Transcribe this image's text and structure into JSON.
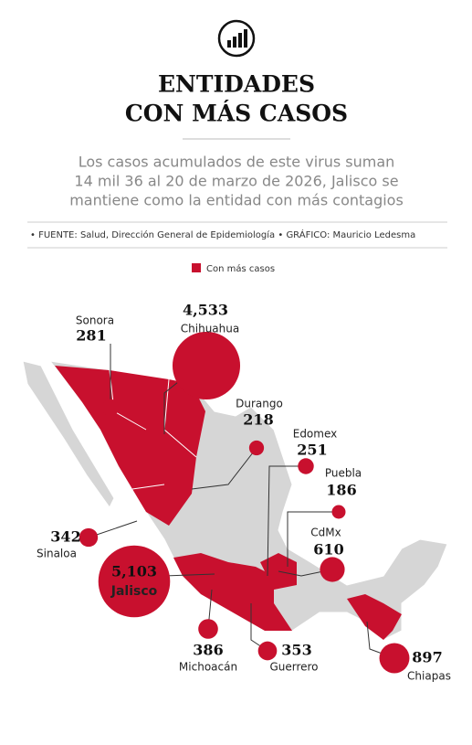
{
  "header": {
    "title_lines": [
      "ENTIDADES",
      "CON MÁS CASOS"
    ],
    "subtitle_lines": [
      "Los casos acumulados de este virus suman",
      "14 mil 36 al 20 de marzo de 2026, Jalisco se",
      "mantiene como la entidad con más contagios"
    ],
    "source_label": "FUENTE:",
    "source": "Salud, Dirección General de Epidemiología",
    "credit_label": "GRÁFICO:",
    "credit": "Mauricio Ledesma"
  },
  "legend": {
    "label": "Con más casos",
    "color": "#c8102e"
  },
  "states": [
    {
      "name": "Sonora",
      "value": 281
    },
    {
      "name": "Chihuahua",
      "value": 4533,
      "value_label": "4,533"
    },
    {
      "name": "Durango",
      "value": 218
    },
    {
      "name": "Edomex",
      "value": 251
    },
    {
      "name": "Puebla",
      "value": 186
    },
    {
      "name": "CdMx",
      "value": 610
    },
    {
      "name": "Sinaloa",
      "value": 342
    },
    {
      "name": "Jalisco",
      "value": 5103,
      "value_label": "5,103"
    },
    {
      "name": "Michoacán",
      "value": 386
    },
    {
      "name": "Guerrero",
      "value": 353
    },
    {
      "name": "Chiapas",
      "value": 897
    }
  ]
}
